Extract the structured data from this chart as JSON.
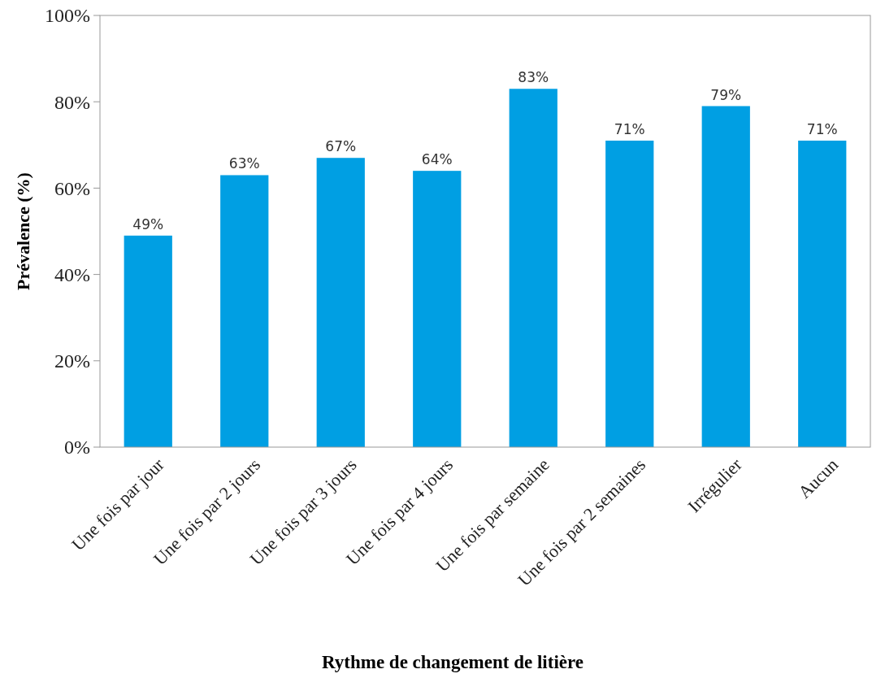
{
  "chart_data": {
    "type": "bar",
    "xlabel": "Rythme de changement de litière",
    "ylabel": "Prévalence (%)",
    "categories": [
      "Une fois par jour",
      "Une fois par 2 jours",
      "Une fois par 3 jours",
      "Une fois par 4 jours",
      "Une fois par semaine",
      "Une fois par 2 semaines",
      "Irrégulier",
      "Aucun"
    ],
    "values": [
      49,
      63,
      67,
      64,
      83,
      71,
      79,
      71
    ],
    "value_labels": [
      "49%",
      "63%",
      "67%",
      "64%",
      "83%",
      "71%",
      "79%",
      "71%"
    ],
    "color": "#009fe3",
    "ylim": [
      0,
      100
    ],
    "yticks": [
      {
        "value": 0,
        "label": "0%"
      },
      {
        "value": 20,
        "label": "20%"
      },
      {
        "value": 40,
        "label": "40%"
      },
      {
        "value": 60,
        "label": "60%"
      },
      {
        "value": 80,
        "label": "80%"
      },
      {
        "value": 100,
        "label": "100%"
      }
    ],
    "grid": false
  }
}
